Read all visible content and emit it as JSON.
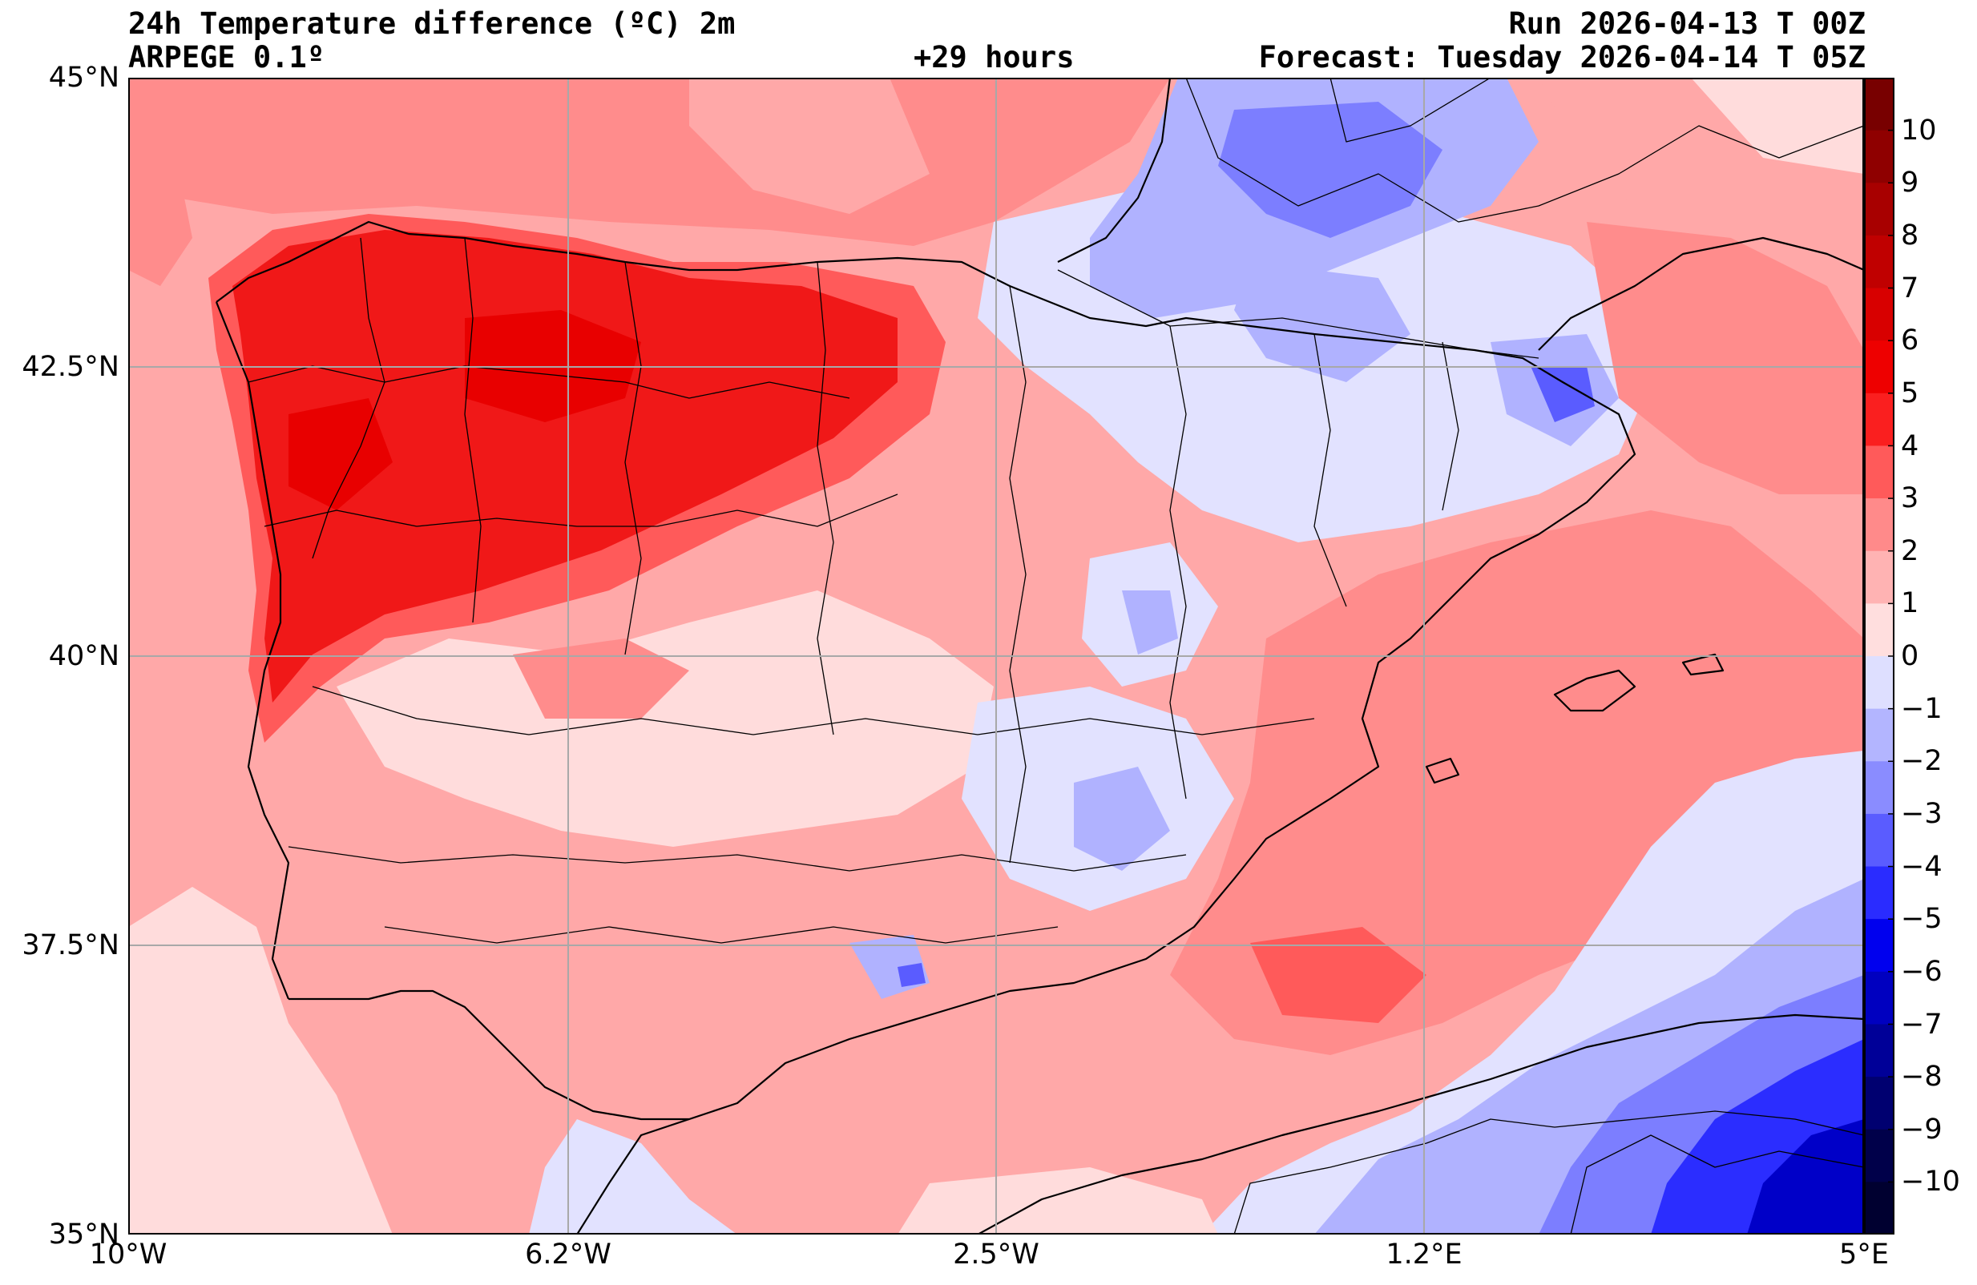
{
  "header": {
    "title": "24h Temperature difference (ºC) 2m",
    "model": "ARPEGE 0.1º",
    "lead_time": "+29 hours",
    "run": "Run 2026-04-13 T 00Z",
    "forecast": "Forecast: Tuesday 2026-04-14 T 05Z"
  },
  "axes": {
    "lat_labels": [
      "45°N",
      "42.5°N",
      "40°N",
      "37.5°N",
      "35°N"
    ],
    "lon_labels": [
      "10°W",
      "6.2°W",
      "2.5°W",
      "1.2°E",
      "5°E"
    ]
  },
  "colorbar": {
    "labels": [
      "10",
      "9",
      "8",
      "7",
      "6",
      "5",
      "4",
      "3",
      "2",
      "1",
      "0",
      "−1",
      "−2",
      "−3",
      "−4",
      "−5",
      "−6",
      "−7",
      "−8",
      "−9",
      "−10"
    ],
    "colors_top_to_bottom": [
      "#780000",
      "#8f0000",
      "#a80000",
      "#c00000",
      "#d80000",
      "#ee0000",
      "#fa1f1f",
      "#ff5a5a",
      "#ff8a8a",
      "#ffb3b3",
      "#ffdede",
      "#dedfff",
      "#b3b5ff",
      "#8a8cff",
      "#5a5cff",
      "#2a2cff",
      "#0000ee",
      "#0000c0",
      "#000098",
      "#000070",
      "#00004a",
      "#000030"
    ]
  },
  "legend_colors": {
    "warm_strong": "#f01818",
    "warm_mid": "#ff6b6b",
    "warm_light": "#ffa8a8",
    "warm_faint": "#ffdcdc",
    "cool_faint": "#e2e2ff",
    "cool_light": "#b0b2ff",
    "cool_mid": "#7c7eff",
    "cool_strong": "#2b2dff"
  }
}
